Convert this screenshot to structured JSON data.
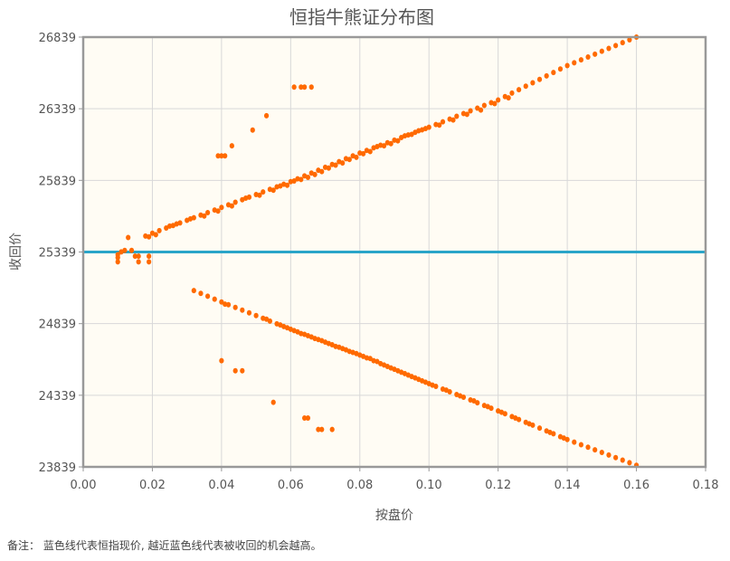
{
  "chart_data": {
    "type": "scatter",
    "title": "恒指牛熊证分布图",
    "xlabel": "按盘价",
    "ylabel": "收回价",
    "xlim": [
      0,
      0.18
    ],
    "ylim": [
      23839,
      26839
    ],
    "x_ticks": [
      "0.00",
      "0.02",
      "0.04",
      "0.06",
      "0.08",
      "0.10",
      "0.12",
      "0.14",
      "0.16",
      "0.18"
    ],
    "y_ticks": [
      "23839",
      "24339",
      "24839",
      "25339",
      "25839",
      "26339",
      "26839"
    ],
    "grid": true,
    "reference_line": {
      "y": 25339,
      "color": "#2aa5c8"
    },
    "point_color": "#ff6a00",
    "plot_background": "#fffcf4",
    "points": [
      [
        0.01,
        25270
      ],
      [
        0.01,
        25300
      ],
      [
        0.01,
        25320
      ],
      [
        0.011,
        25340
      ],
      [
        0.012,
        25350
      ],
      [
        0.013,
        25440
      ],
      [
        0.014,
        25350
      ],
      [
        0.015,
        25310
      ],
      [
        0.016,
        25310
      ],
      [
        0.016,
        25270
      ],
      [
        0.019,
        25310
      ],
      [
        0.019,
        25270
      ],
      [
        0.018,
        25450
      ],
      [
        0.019,
        25445
      ],
      [
        0.02,
        25470
      ],
      [
        0.021,
        25460
      ],
      [
        0.022,
        25488
      ],
      [
        0.024,
        25506
      ],
      [
        0.025,
        25520
      ],
      [
        0.026,
        25524
      ],
      [
        0.027,
        25535
      ],
      [
        0.028,
        25542
      ],
      [
        0.03,
        25560
      ],
      [
        0.031,
        25570
      ],
      [
        0.032,
        25578
      ],
      [
        0.034,
        25596
      ],
      [
        0.035,
        25590
      ],
      [
        0.036,
        25614
      ],
      [
        0.038,
        25632
      ],
      [
        0.039,
        25625
      ],
      [
        0.04,
        25650
      ],
      [
        0.042,
        25668
      ],
      [
        0.043,
        25660
      ],
      [
        0.044,
        25686
      ],
      [
        0.046,
        25704
      ],
      [
        0.047,
        25715
      ],
      [
        0.048,
        25722
      ],
      [
        0.05,
        25740
      ],
      [
        0.051,
        25735
      ],
      [
        0.052,
        25758
      ],
      [
        0.054,
        25776
      ],
      [
        0.055,
        25770
      ],
      [
        0.056,
        25794
      ],
      [
        0.057,
        25800
      ],
      [
        0.058,
        25812
      ],
      [
        0.059,
        25805
      ],
      [
        0.06,
        25830
      ],
      [
        0.061,
        25835
      ],
      [
        0.062,
        25850
      ],
      [
        0.063,
        25845
      ],
      [
        0.064,
        25870
      ],
      [
        0.065,
        25860
      ],
      [
        0.066,
        25890
      ],
      [
        0.067,
        25880
      ],
      [
        0.068,
        25910
      ],
      [
        0.069,
        25900
      ],
      [
        0.07,
        25930
      ],
      [
        0.071,
        25925
      ],
      [
        0.072,
        25950
      ],
      [
        0.073,
        25945
      ],
      [
        0.074,
        25970
      ],
      [
        0.075,
        25960
      ],
      [
        0.076,
        25990
      ],
      [
        0.077,
        25985
      ],
      [
        0.078,
        26010
      ],
      [
        0.079,
        26000
      ],
      [
        0.08,
        26030
      ],
      [
        0.081,
        26025
      ],
      [
        0.082,
        26048
      ],
      [
        0.083,
        26040
      ],
      [
        0.084,
        26066
      ],
      [
        0.085,
        26075
      ],
      [
        0.086,
        26084
      ],
      [
        0.087,
        26080
      ],
      [
        0.088,
        26102
      ],
      [
        0.089,
        26095
      ],
      [
        0.09,
        26120
      ],
      [
        0.091,
        26115
      ],
      [
        0.092,
        26138
      ],
      [
        0.093,
        26150
      ],
      [
        0.094,
        26156
      ],
      [
        0.095,
        26160
      ],
      [
        0.096,
        26174
      ],
      [
        0.097,
        26185
      ],
      [
        0.098,
        26192
      ],
      [
        0.099,
        26200
      ],
      [
        0.1,
        26210
      ],
      [
        0.102,
        26229
      ],
      [
        0.103,
        26225
      ],
      [
        0.104,
        26248
      ],
      [
        0.106,
        26267
      ],
      [
        0.107,
        26260
      ],
      [
        0.108,
        26286
      ],
      [
        0.11,
        26305
      ],
      [
        0.111,
        26300
      ],
      [
        0.112,
        26324
      ],
      [
        0.114,
        26343
      ],
      [
        0.115,
        26330
      ],
      [
        0.116,
        26362
      ],
      [
        0.118,
        26381
      ],
      [
        0.119,
        26375
      ],
      [
        0.12,
        26400
      ],
      [
        0.122,
        26424
      ],
      [
        0.123,
        26415
      ],
      [
        0.124,
        26448
      ],
      [
        0.126,
        26472
      ],
      [
        0.128,
        26496
      ],
      [
        0.13,
        26520
      ],
      [
        0.132,
        26544
      ],
      [
        0.134,
        26568
      ],
      [
        0.136,
        26592
      ],
      [
        0.138,
        26616
      ],
      [
        0.14,
        26640
      ],
      [
        0.142,
        26660
      ],
      [
        0.144,
        26680
      ],
      [
        0.146,
        26700
      ],
      [
        0.148,
        26720
      ],
      [
        0.15,
        26740
      ],
      [
        0.152,
        26760
      ],
      [
        0.154,
        26780
      ],
      [
        0.156,
        26800
      ],
      [
        0.158,
        26820
      ],
      [
        0.16,
        26839
      ],
      [
        0.039,
        26010
      ],
      [
        0.04,
        26010
      ],
      [
        0.041,
        26010
      ],
      [
        0.043,
        26080
      ],
      [
        0.049,
        26190
      ],
      [
        0.053,
        26290
      ],
      [
        0.061,
        26490
      ],
      [
        0.063,
        26490
      ],
      [
        0.064,
        26490
      ],
      [
        0.066,
        26490
      ],
      [
        0.032,
        25070
      ],
      [
        0.034,
        25050
      ],
      [
        0.036,
        25030
      ],
      [
        0.038,
        25010
      ],
      [
        0.04,
        24990
      ],
      [
        0.041,
        24975
      ],
      [
        0.042,
        24971
      ],
      [
        0.044,
        24952
      ],
      [
        0.046,
        24933
      ],
      [
        0.048,
        24914
      ],
      [
        0.05,
        24895
      ],
      [
        0.052,
        24876
      ],
      [
        0.053,
        24870
      ],
      [
        0.054,
        24857
      ],
      [
        0.056,
        24838
      ],
      [
        0.057,
        24830
      ],
      [
        0.058,
        24819
      ],
      [
        0.059,
        24810
      ],
      [
        0.06,
        24800
      ],
      [
        0.061,
        24790
      ],
      [
        0.062,
        24782
      ],
      [
        0.063,
        24770
      ],
      [
        0.064,
        24764
      ],
      [
        0.065,
        24755
      ],
      [
        0.066,
        24746
      ],
      [
        0.067,
        24735
      ],
      [
        0.068,
        24728
      ],
      [
        0.069,
        24720
      ],
      [
        0.07,
        24710
      ],
      [
        0.071,
        24700
      ],
      [
        0.072,
        24692
      ],
      [
        0.073,
        24680
      ],
      [
        0.074,
        24674
      ],
      [
        0.075,
        24665
      ],
      [
        0.076,
        24656
      ],
      [
        0.077,
        24645
      ],
      [
        0.078,
        24638
      ],
      [
        0.079,
        24630
      ],
      [
        0.08,
        24620
      ],
      [
        0.081,
        24610
      ],
      [
        0.082,
        24600
      ],
      [
        0.083,
        24595
      ],
      [
        0.084,
        24580
      ],
      [
        0.085,
        24575
      ],
      [
        0.086,
        24560
      ],
      [
        0.087,
        24550
      ],
      [
        0.088,
        24540
      ],
      [
        0.089,
        24530
      ],
      [
        0.09,
        24520
      ],
      [
        0.091,
        24510
      ],
      [
        0.092,
        24500
      ],
      [
        0.093,
        24490
      ],
      [
        0.094,
        24480
      ],
      [
        0.095,
        24470
      ],
      [
        0.096,
        24460
      ],
      [
        0.097,
        24450
      ],
      [
        0.098,
        24440
      ],
      [
        0.099,
        24430
      ],
      [
        0.1,
        24420
      ],
      [
        0.101,
        24410
      ],
      [
        0.102,
        24401
      ],
      [
        0.104,
        24382
      ],
      [
        0.105,
        24375
      ],
      [
        0.106,
        24363
      ],
      [
        0.108,
        24344
      ],
      [
        0.109,
        24335
      ],
      [
        0.11,
        24325
      ],
      [
        0.112,
        24306
      ],
      [
        0.113,
        24300
      ],
      [
        0.114,
        24287
      ],
      [
        0.116,
        24268
      ],
      [
        0.117,
        24260
      ],
      [
        0.118,
        24249
      ],
      [
        0.12,
        24230
      ],
      [
        0.121,
        24220
      ],
      [
        0.122,
        24210
      ],
      [
        0.124,
        24190
      ],
      [
        0.125,
        24180
      ],
      [
        0.126,
        24170
      ],
      [
        0.128,
        24150
      ],
      [
        0.129,
        24140
      ],
      [
        0.13,
        24130
      ],
      [
        0.132,
        24110
      ],
      [
        0.134,
        24090
      ],
      [
        0.135,
        24080
      ],
      [
        0.136,
        24070
      ],
      [
        0.138,
        24050
      ],
      [
        0.139,
        24040
      ],
      [
        0.14,
        24030
      ],
      [
        0.142,
        24012
      ],
      [
        0.144,
        23994
      ],
      [
        0.146,
        23976
      ],
      [
        0.148,
        23958
      ],
      [
        0.15,
        23940
      ],
      [
        0.152,
        23922
      ],
      [
        0.154,
        23904
      ],
      [
        0.156,
        23886
      ],
      [
        0.158,
        23868
      ],
      [
        0.16,
        23850
      ],
      [
        0.04,
        24580
      ],
      [
        0.044,
        24510
      ],
      [
        0.046,
        24510
      ],
      [
        0.055,
        24290
      ],
      [
        0.064,
        24180
      ],
      [
        0.065,
        24180
      ],
      [
        0.068,
        24100
      ],
      [
        0.069,
        24100
      ],
      [
        0.072,
        24100
      ]
    ]
  },
  "note": "备注：  蓝色线代表恒指现价, 越近蓝色线代表被收回的机会越高。"
}
